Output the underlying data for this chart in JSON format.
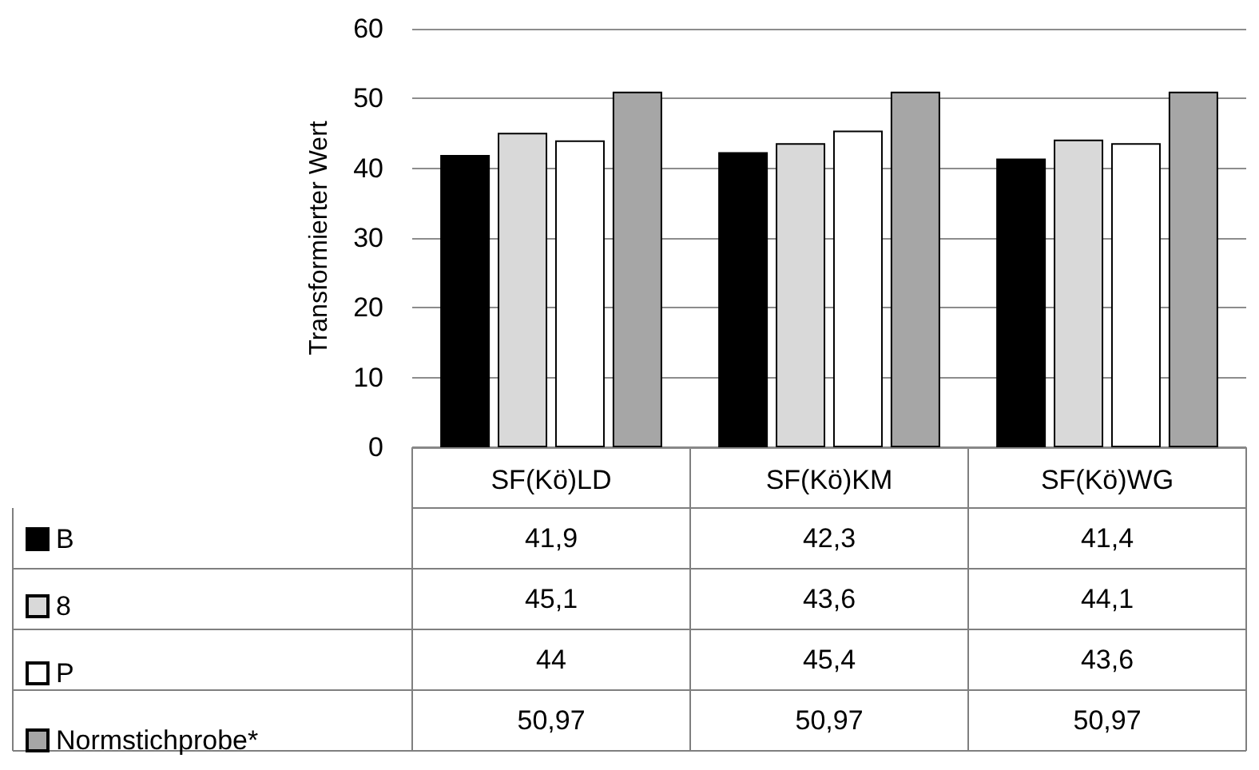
{
  "chart_data": {
    "type": "bar",
    "ylabel": "Transformierter Wert",
    "categories": [
      "SF(Kö)LD",
      "SF(Kö)KM",
      "SF(Kö)WG"
    ],
    "series": [
      {
        "name": "B",
        "color": "#000000",
        "values": [
          41.9,
          42.3,
          41.4
        ],
        "value_labels": [
          "41,9",
          "42,3",
          "41,4"
        ]
      },
      {
        "name": "8",
        "color": "#d9d9d9",
        "values": [
          45.1,
          43.6,
          44.1
        ],
        "value_labels": [
          "45,1",
          "43,6",
          "44,1"
        ]
      },
      {
        "name": "P",
        "color": "#ffffff",
        "values": [
          44,
          45.4,
          43.6
        ],
        "value_labels": [
          "44",
          "45,4",
          "43,6"
        ]
      },
      {
        "name": "Normstichprobe*",
        "color": "#a6a6a6",
        "values": [
          50.97,
          50.97,
          50.97
        ],
        "value_labels": [
          "50,97",
          "50,97",
          "50,97"
        ]
      }
    ],
    "ylim": [
      0,
      60
    ],
    "yticks": [
      0,
      10,
      20,
      30,
      40,
      50,
      60
    ],
    "grid": "y",
    "legend": "bottom left"
  }
}
